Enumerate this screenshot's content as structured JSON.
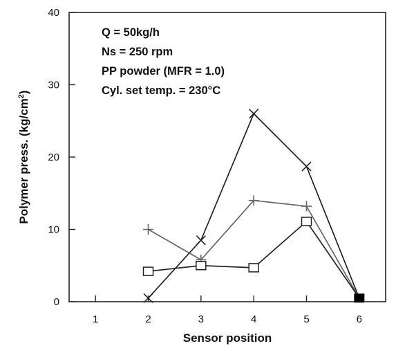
{
  "chart_data": {
    "type": "line",
    "xlabel": "Sensor position",
    "ylabel": "Polymer press. (kg/cm",
    "ylabel_sup": "2",
    "ylabel_close": ")",
    "xlim": [
      0.5,
      6.5
    ],
    "ylim": [
      0,
      40
    ],
    "x_ticks": [
      1,
      2,
      3,
      4,
      5,
      6
    ],
    "y_ticks": [
      0,
      10,
      20,
      30,
      40
    ],
    "grid": false,
    "annotations": [
      "Q = 50kg/h",
      "Ns = 250 rpm",
      "PP powder (MFR = 1.0)",
      "Cyl. set temp. = 230°C"
    ],
    "series": [
      {
        "marker": "x",
        "color": "#222222",
        "x": [
          2,
          3,
          4,
          5,
          6
        ],
        "y": [
          0.5,
          8.5,
          26,
          18.7,
          0.5
        ]
      },
      {
        "marker": "plus",
        "color": "#666666",
        "x": [
          2,
          3,
          4,
          5,
          6
        ],
        "y": [
          10,
          5.8,
          14,
          13.2,
          0.5
        ]
      },
      {
        "marker": "square",
        "color": "#222222",
        "x": [
          2,
          3,
          4,
          5,
          6
        ],
        "y": [
          4.2,
          5.0,
          4.7,
          11.1,
          0.5
        ]
      }
    ],
    "end_marker": {
      "shape": "filled-square",
      "x": 6,
      "y": 0.5,
      "color": "#000000"
    }
  }
}
